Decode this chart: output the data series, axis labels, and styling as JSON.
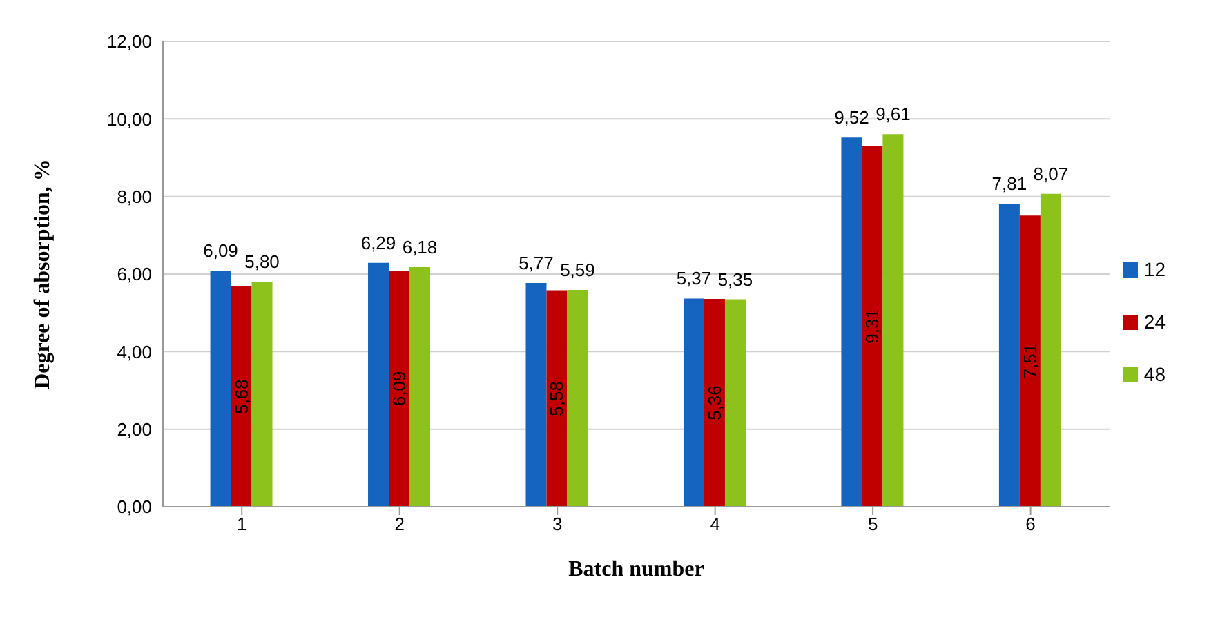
{
  "chart_data": {
    "type": "bar",
    "xlabel": "Batch number",
    "ylabel": "Degree of absorption, %",
    "categories": [
      "1",
      "2",
      "3",
      "4",
      "5",
      "6"
    ],
    "series": [
      {
        "name": "12",
        "color": "#1565c0",
        "values": [
          6.09,
          6.29,
          5.77,
          5.37,
          9.52,
          7.81
        ],
        "value_labels": [
          "6,09",
          "6,29",
          "5,77",
          "5,37",
          "9,52",
          "7,81"
        ]
      },
      {
        "name": "24",
        "color": "#c00000",
        "values": [
          5.68,
          6.09,
          5.58,
          5.36,
          9.31,
          7.51
        ],
        "value_labels": [
          "5,68",
          "6,09",
          "5,58",
          "5,36",
          "9,31",
          "7,51"
        ]
      },
      {
        "name": "48",
        "color": "#8cc21b",
        "values": [
          5.8,
          6.18,
          5.59,
          5.35,
          9.61,
          8.07
        ],
        "value_labels": [
          "5,80",
          "6,18",
          "5,59",
          "5,35",
          "9,61",
          "8,07"
        ]
      }
    ],
    "ylim": [
      0,
      12
    ],
    "yticks": [
      {
        "value": 0,
        "label": "0,00"
      },
      {
        "value": 2,
        "label": "2,00"
      },
      {
        "value": 4,
        "label": "4,00"
      },
      {
        "value": 6,
        "label": "6,00"
      },
      {
        "value": 8,
        "label": "8,00"
      },
      {
        "value": 10,
        "label": "10,00"
      },
      {
        "value": 12,
        "label": "12,00"
      }
    ],
    "grid": "y",
    "legend": "right"
  }
}
